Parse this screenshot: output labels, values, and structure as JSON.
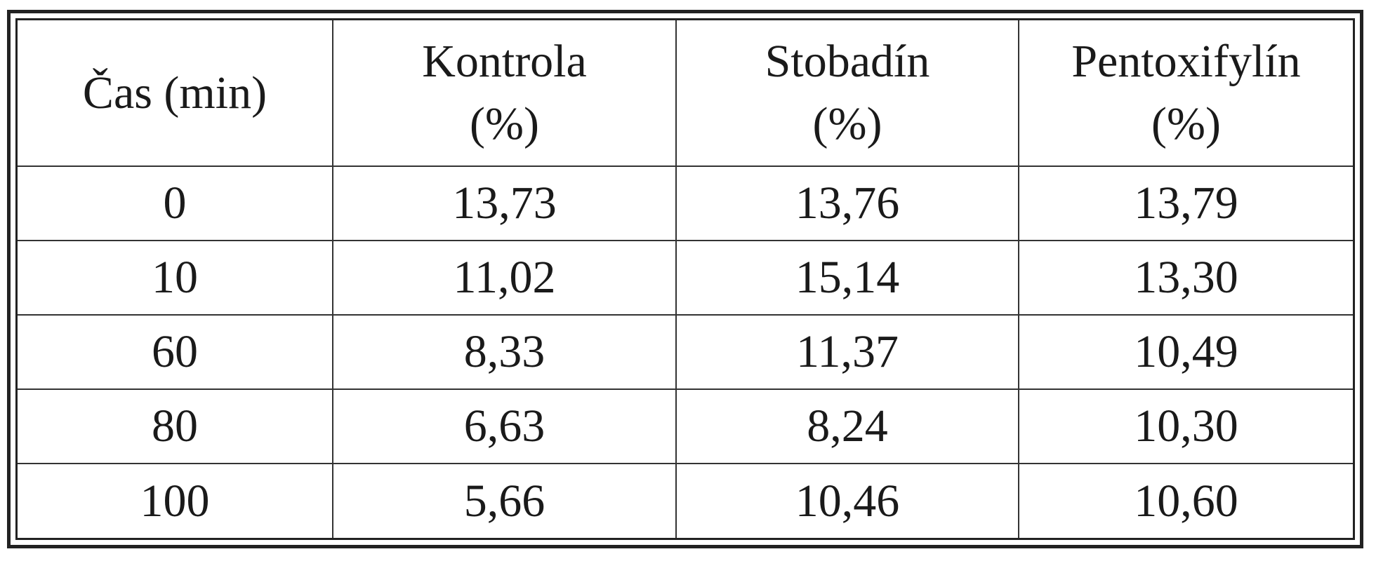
{
  "table": {
    "headers": [
      {
        "label": "Čas (min)",
        "unit": ""
      },
      {
        "label": "Kontrola",
        "unit": "(%)"
      },
      {
        "label": "Stobadín",
        "unit": "(%)"
      },
      {
        "label": "Pentoxifylín",
        "unit": "(%)"
      }
    ],
    "rows": [
      [
        "0",
        "13,73",
        "13,76",
        "13,79"
      ],
      [
        "10",
        "11,02",
        "15,14",
        "13,30"
      ],
      [
        "60",
        "8,33",
        "11,37",
        "10,49"
      ],
      [
        "80",
        "6,63",
        "8,24",
        "10,30"
      ],
      [
        "100",
        "5,66",
        "10,46",
        "10,60"
      ]
    ]
  }
}
